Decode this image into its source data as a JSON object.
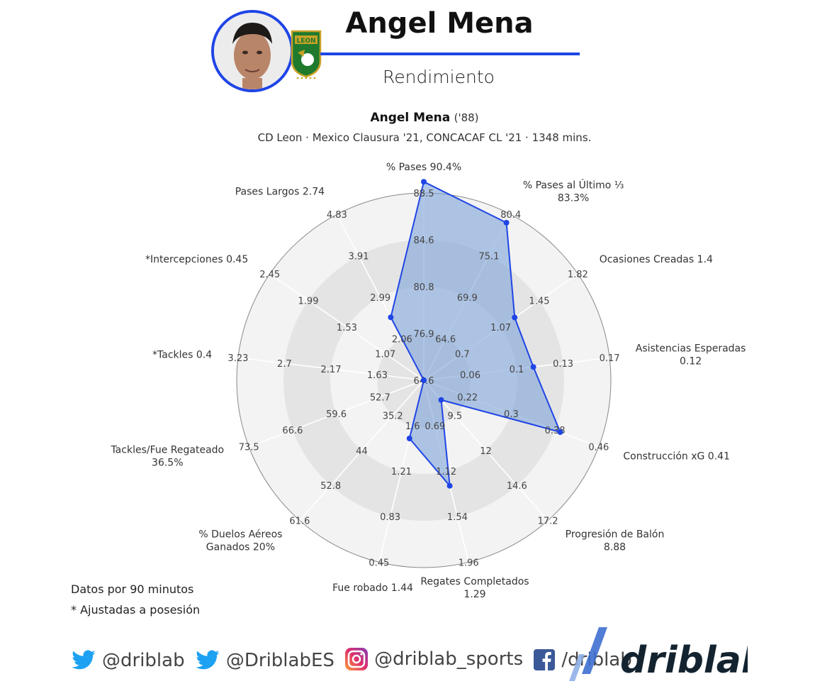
{
  "header": {
    "player_name": "Angel Mena",
    "subtitle": "Rendimiento",
    "crest_text": "LEON"
  },
  "chart_heading": {
    "name": "Angel Mena",
    "birth_year": "('88)",
    "info": "CD Leon · Mexico Clausura '21, CONCACAF CL '21 · 1348 mins."
  },
  "colors": {
    "accent": "#1f45e6",
    "polygon_fill": "#7fa3d8",
    "ring_dark": "#e4e4e4",
    "ring_light": "#f3f3f3"
  },
  "footnotes": {
    "per90": "Datos por 90 minutos",
    "adjusted": "* Ajustadas a posesión"
  },
  "social": {
    "handles": [
      {
        "icon": "twitter-icon",
        "text": "@driblab"
      },
      {
        "icon": "twitter-icon",
        "text": "@DriblabES"
      },
      {
        "icon": "instagram-icon",
        "text": "@driblab_sports"
      },
      {
        "icon": "facebook-icon",
        "text": "/driblab"
      }
    ],
    "brand": "driblab"
  },
  "chart_data": {
    "type": "radar",
    "axes": [
      {
        "label": "% Pases 90.4%",
        "value": 90.4,
        "ticks": [
          "64.6",
          "76.9",
          "80.8",
          "84.6",
          "88.5"
        ]
      },
      {
        "label": "% Pases al Último ⅓\n83.3%",
        "value": 83.3,
        "ticks": [
          "64.6",
          "69.9",
          "75.1",
          "80.4"
        ]
      },
      {
        "label": "Ocasiones Creadas 1.4",
        "value": 1.4,
        "ticks": [
          "0.7",
          "1.07",
          "1.45",
          "1.82"
        ]
      },
      {
        "label": "Asistencias Esperadas\n0.12",
        "value": 0.12,
        "ticks": [
          "0.06",
          "0.1",
          "0.13",
          "0.17"
        ]
      },
      {
        "label": "Construcción xG 0.41",
        "value": 0.41,
        "ticks": [
          "0.22",
          "0.3",
          "0.38",
          "0.46"
        ]
      },
      {
        "label": "Progresión de Balón\n8.88",
        "value": 8.88,
        "ticks": [
          "9.5",
          "12",
          "14.6",
          "17.2"
        ]
      },
      {
        "label": "Regates Completados\n1.29",
        "value": 1.29,
        "ticks": [
          "0.69",
          "1.12",
          "1.54",
          "1.96"
        ]
      },
      {
        "label": "Fue robado 1.44",
        "value": 1.44,
        "ticks": [
          "1.6",
          "1.21",
          "0.83",
          "0.45"
        ]
      },
      {
        "label": "% Duelos Aéreos\nGanados 20%",
        "value": 20,
        "ticks": [
          "35.2",
          "44",
          "52.8",
          "61.6"
        ]
      },
      {
        "label": "Tackles/Fue Regateado\n36.5%",
        "value": 36.5,
        "ticks": [
          "52.7",
          "59.6",
          "66.6",
          "73.5"
        ]
      },
      {
        "label": "*Tackles 0.4",
        "value": 0.4,
        "ticks": [
          "1.63",
          "2.17",
          "2.7",
          "3.23"
        ]
      },
      {
        "label": "*Intercepciones 0.45",
        "value": 0.45,
        "ticks": [
          "1.07",
          "1.53",
          "1.99",
          "2.45"
        ]
      },
      {
        "label": "Pases Largos 2.74",
        "value": 2.74,
        "ticks": [
          "2.06",
          "2.99",
          "3.91",
          "4.83"
        ]
      }
    ],
    "normalized_values": [
      1.06,
      0.95,
      0.59,
      0.59,
      0.78,
      0.14,
      0.58,
      0.32,
      0.0,
      0.0,
      0.0,
      0.0,
      0.38
    ],
    "rings": 4,
    "legend": "none",
    "grid": true
  }
}
